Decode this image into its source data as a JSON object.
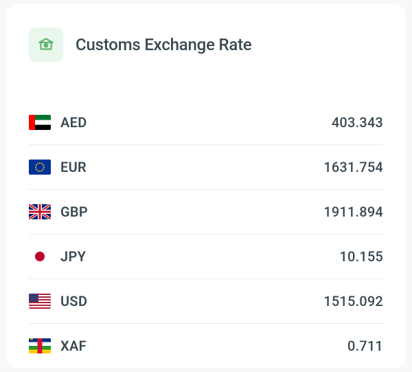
{
  "header": {
    "title": "Customs Exchange Rate",
    "icon_bg": "#e9f7ec",
    "icon_color": "#62b36f"
  },
  "text_color": "#3a4a52",
  "divider_color": "#e8ebee",
  "card_bg": "#ffffff",
  "page_bg": "#f7f8fa",
  "rates": [
    {
      "code": "AED",
      "rate": "403.343",
      "flag": "aed",
      "flag_colors": {
        "red": "#ff0000",
        "green": "#00732f",
        "white": "#ffffff",
        "black": "#000000"
      }
    },
    {
      "code": "EUR",
      "rate": "1631.754",
      "flag": "eur",
      "flag_colors": {
        "blue": "#003399",
        "star": "#ffcc00"
      }
    },
    {
      "code": "GBP",
      "rate": "1911.894",
      "flag": "gbp",
      "flag_colors": {
        "blue": "#012169",
        "red": "#c8102e",
        "white": "#ffffff"
      }
    },
    {
      "code": "JPY",
      "rate": "10.155",
      "flag": "jpy",
      "flag_colors": {
        "white": "#ffffff",
        "red": "#bc002d"
      }
    },
    {
      "code": "USD",
      "rate": "1515.092",
      "flag": "usd",
      "flag_colors": {
        "red": "#b22234",
        "white": "#ffffff",
        "blue": "#3c3b6e"
      }
    },
    {
      "code": "XAF",
      "rate": "0.711",
      "flag": "xaf",
      "flag_colors": {
        "blue": "#003082",
        "white": "#ffffff",
        "green": "#289728",
        "yellow": "#ffce00",
        "red": "#d21034"
      }
    }
  ]
}
